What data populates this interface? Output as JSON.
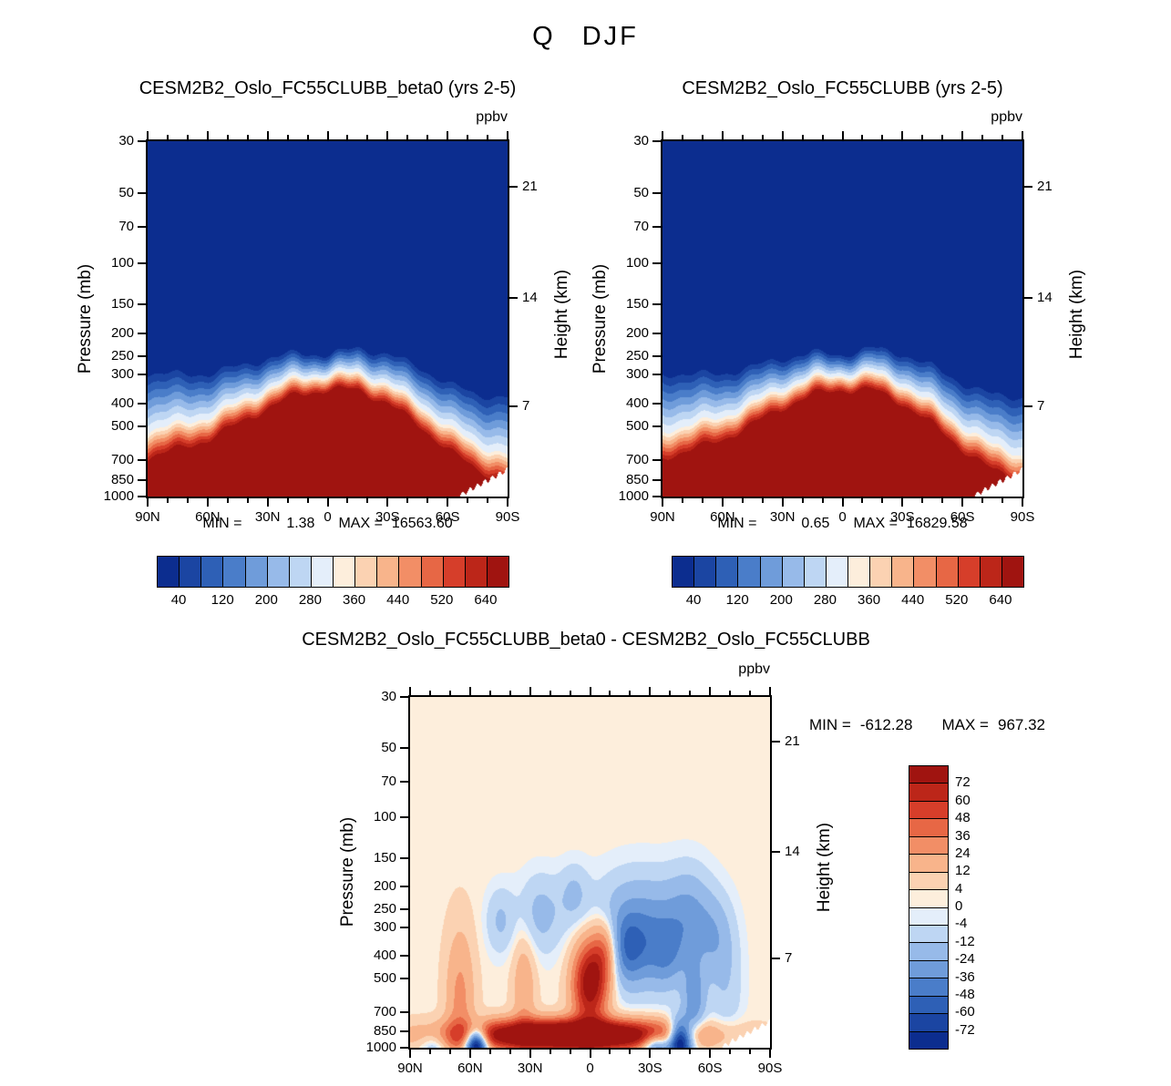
{
  "figure": {
    "title": "Q DJF",
    "units_label": "ppbv"
  },
  "axes": {
    "pressure_label": "Pressure (mb)",
    "height_label": "Height (km)",
    "pressure_ticks": [
      "30",
      "50",
      "70",
      "100",
      "150",
      "200",
      "250",
      "300",
      "400",
      "500",
      "700",
      "850",
      "1000"
    ],
    "pressure_tick_values": [
      30,
      50,
      70,
      100,
      150,
      200,
      250,
      300,
      400,
      500,
      700,
      850,
      1000
    ],
    "height_ticks": [
      "21",
      "14",
      "7"
    ],
    "height_tick_pressures": [
      47,
      141,
      410
    ],
    "lat_ticks": [
      "90N",
      "60N",
      "30N",
      "0",
      "30S",
      "60S",
      "90S"
    ]
  },
  "panels": [
    {
      "title": "CESM2B2_Oslo_FC55CLUBB_beta0 (yrs 2-5)",
      "min_label": "MIN =",
      "min_value": "1.38",
      "max_label": "MAX =",
      "max_value": "16563.60"
    },
    {
      "title": "CESM2B2_Oslo_FC55CLUBB (yrs 2-5)",
      "min_label": "MIN =",
      "min_value": "0.65",
      "max_label": "MAX =",
      "max_value": "16829.58"
    }
  ],
  "diff_panel": {
    "title": "CESM2B2_Oslo_FC55CLUBB_beta0 - CESM2B2_Oslo_FC55CLUBB",
    "min_label": "MIN =",
    "min_value": "-612.28",
    "max_label": "MAX =",
    "max_value": "967.32"
  },
  "chart_data": [
    {
      "type": "heatmap",
      "panel": "top-left",
      "title": "CESM2B2_Oslo_FC55CLUBB_beta0 (yrs 2-5)",
      "units": "ppbv",
      "x_axis": {
        "ticks": [
          "90N",
          "60N",
          "30N",
          "0",
          "30S",
          "60S",
          "90S"
        ],
        "domain_deg": [
          90,
          -90
        ]
      },
      "y_axis": {
        "label": "Pressure (mb)",
        "scale": "log",
        "domain_mb": [
          30,
          1000
        ],
        "ticks": [
          30,
          50,
          70,
          100,
          150,
          200,
          250,
          300,
          400,
          500,
          700,
          850,
          1000
        ]
      },
      "y2_axis": {
        "label": "Height (km)",
        "ticks": [
          21,
          14,
          7
        ]
      },
      "stats": {
        "min": 1.38,
        "max": 16563.6
      },
      "colorbar": {
        "orientation": "horizontal",
        "n_cells": 16,
        "labels": [
          40,
          120,
          200,
          280,
          360,
          440,
          520,
          640
        ]
      },
      "palette": [
        "#0c2d8f",
        "#1b45a2",
        "#2e60b6",
        "#4a7dc9",
        "#6f9cda",
        "#97bae9",
        "#bed6f3",
        "#e4eefa",
        "#fdeedc",
        "#fbd2b2",
        "#f8b48b",
        "#f28e66",
        "#e76745",
        "#d63e2a",
        "#bc2619",
        "#a01410"
      ],
      "field_model": {
        "description": "Q < 40 ppbv (dark blue) in stratosphere, > 640 ppbv (dark red) in troposphere; transition band follows tropopause dome peaking near the equator",
        "transition_curve": {
          "lat": [
            90,
            60,
            30,
            15,
            0,
            -15,
            -30,
            -45,
            -60,
            -75,
            -90
          ],
          "log10_p_mid": [
            2.72,
            2.66,
            2.54,
            2.49,
            2.48,
            2.47,
            2.52,
            2.6,
            2.7,
            2.78,
            2.82
          ]
        },
        "width_up": {
          "base": 0.1,
          "amp": 0.18,
          "exp": 1.2
        },
        "width_down": {
          "base": 0.07,
          "amp": 0.06
        },
        "wiggle": [
          {
            "amp": 0.012,
            "freq": 0.22,
            "phase": 0.3
          },
          {
            "amp": 0.007,
            "freq": 0.55,
            "phase": 1.2
          }
        ],
        "surface_cut": {
          "lat_start": -65,
          "log10_p_at_90S": 2.885
        }
      }
    },
    {
      "type": "heatmap",
      "panel": "top-right",
      "title": "CESM2B2_Oslo_FC55CLUBB (yrs 2-5)",
      "units": "ppbv",
      "x_axis": {
        "ticks": [
          "90N",
          "60N",
          "30N",
          "0",
          "30S",
          "60S",
          "90S"
        ],
        "domain_deg": [
          90,
          -90
        ]
      },
      "y_axis": {
        "label": "Pressure (mb)",
        "scale": "log",
        "domain_mb": [
          30,
          1000
        ],
        "ticks": [
          30,
          50,
          70,
          100,
          150,
          200,
          250,
          300,
          400,
          500,
          700,
          850,
          1000
        ]
      },
      "y2_axis": {
        "label": "Height (km)",
        "ticks": [
          21,
          14,
          7
        ]
      },
      "stats": {
        "min": 0.65,
        "max": 16829.58
      },
      "colorbar": {
        "orientation": "horizontal",
        "n_cells": 16,
        "labels": [
          40,
          120,
          200,
          280,
          360,
          440,
          520,
          640
        ]
      },
      "palette": [
        "#0c2d8f",
        "#1b45a2",
        "#2e60b6",
        "#4a7dc9",
        "#6f9cda",
        "#97bae9",
        "#bed6f3",
        "#e4eefa",
        "#fdeedc",
        "#fbd2b2",
        "#f8b48b",
        "#f28e66",
        "#e76745",
        "#d63e2a",
        "#bc2619",
        "#a01410"
      ],
      "field_model": {
        "description": "Same structure as beta0 run",
        "transition_curve": {
          "lat": [
            90,
            60,
            30,
            15,
            0,
            -15,
            -30,
            -45,
            -60,
            -75,
            -90
          ],
          "log10_p_mid": [
            2.72,
            2.66,
            2.54,
            2.49,
            2.48,
            2.47,
            2.52,
            2.6,
            2.7,
            2.78,
            2.82
          ]
        },
        "width_up": {
          "base": 0.1,
          "amp": 0.18,
          "exp": 1.2
        },
        "width_down": {
          "base": 0.07,
          "amp": 0.06
        },
        "wiggle": [
          {
            "amp": 0.012,
            "freq": 0.22,
            "phase": 2.0
          },
          {
            "amp": 0.007,
            "freq": 0.55,
            "phase": 4.1
          }
        ],
        "surface_cut": {
          "lat_start": -65,
          "log10_p_at_90S": 2.885
        }
      }
    },
    {
      "type": "heatmap",
      "panel": "difference",
      "title": "CESM2B2_Oslo_FC55CLUBB_beta0 - CESM2B2_Oslo_FC55CLUBB",
      "units": "ppbv",
      "x_axis": {
        "ticks": [
          "90N",
          "60N",
          "30N",
          "0",
          "30S",
          "60S",
          "90S"
        ],
        "domain_deg": [
          90,
          -90
        ]
      },
      "y_axis": {
        "label": "Pressure (mb)",
        "scale": "log",
        "domain_mb": [
          30,
          1000
        ],
        "ticks": [
          30,
          50,
          70,
          100,
          150,
          200,
          250,
          300,
          400,
          500,
          700,
          850,
          1000
        ]
      },
      "y2_axis": {
        "label": "Height (km)",
        "ticks": [
          21,
          14,
          7
        ]
      },
      "stats": {
        "min": -612.28,
        "max": 967.32
      },
      "colorbar": {
        "orientation": "vertical",
        "n_cells": 16,
        "labels": [
          72,
          60,
          48,
          36,
          24,
          12,
          4,
          0,
          -4,
          -12,
          -24,
          -36,
          -48,
          -60,
          -72
        ]
      },
      "levels": [
        -72,
        -60,
        -48,
        -36,
        -24,
        -12,
        -4,
        0,
        4,
        12,
        24,
        36,
        48,
        60,
        72
      ],
      "palette": [
        "#0c2d8f",
        "#1b45a2",
        "#2e60b6",
        "#4a7dc9",
        "#6f9cda",
        "#97bae9",
        "#bed6f3",
        "#e4eefa",
        "#fdeedc",
        "#fbd2b2",
        "#f8b48b",
        "#f28e66",
        "#e76745",
        "#d63e2a",
        "#bc2619",
        "#a01410"
      ],
      "field_model": {
        "description": "Near-zero (pale cream) background; strong positive band near 850 mb from ~55N to ~40S; negative (blue) anomalies 150-500 mb mainly 0-60S; dark negative spots near surface ~57N and ~45S",
        "base_value": 2,
        "anomaly_blobs": [
          [
            10,
            2.945,
            38,
            0.045,
            130
          ],
          [
            0,
            2.72,
            6,
            0.13,
            85
          ],
          [
            -8,
            2.58,
            5,
            0.1,
            45
          ],
          [
            65,
            2.8,
            5,
            0.22,
            26
          ],
          [
            33,
            2.74,
            4,
            0.18,
            20
          ],
          [
            -25,
            2.5,
            16,
            0.16,
            -38
          ],
          [
            -18,
            2.58,
            7,
            0.1,
            -28
          ],
          [
            -50,
            2.42,
            8,
            0.14,
            -22
          ],
          [
            -62,
            2.52,
            6,
            0.12,
            -16
          ],
          [
            25,
            2.42,
            8,
            0.12,
            -18
          ],
          [
            45,
            2.45,
            5,
            0.1,
            -15
          ],
          [
            8,
            2.33,
            5,
            0.09,
            -14
          ],
          [
            57,
            2.985,
            4,
            0.05,
            -120
          ],
          [
            -45,
            2.97,
            4,
            0.06,
            -110
          ],
          [
            -33,
            2.99,
            5,
            0.04,
            -60
          ],
          [
            -52,
            2.8,
            4,
            0.12,
            -32
          ],
          [
            78,
            2.99,
            5,
            0.05,
            -22
          ],
          [
            -68,
            2.72,
            6,
            0.2,
            -12
          ],
          [
            -38,
            2.6,
            6,
            0.1,
            -20
          ]
        ],
        "surface_cut": {
          "lat_start": -65,
          "log10_p_at_90S": 2.885
        }
      }
    }
  ]
}
